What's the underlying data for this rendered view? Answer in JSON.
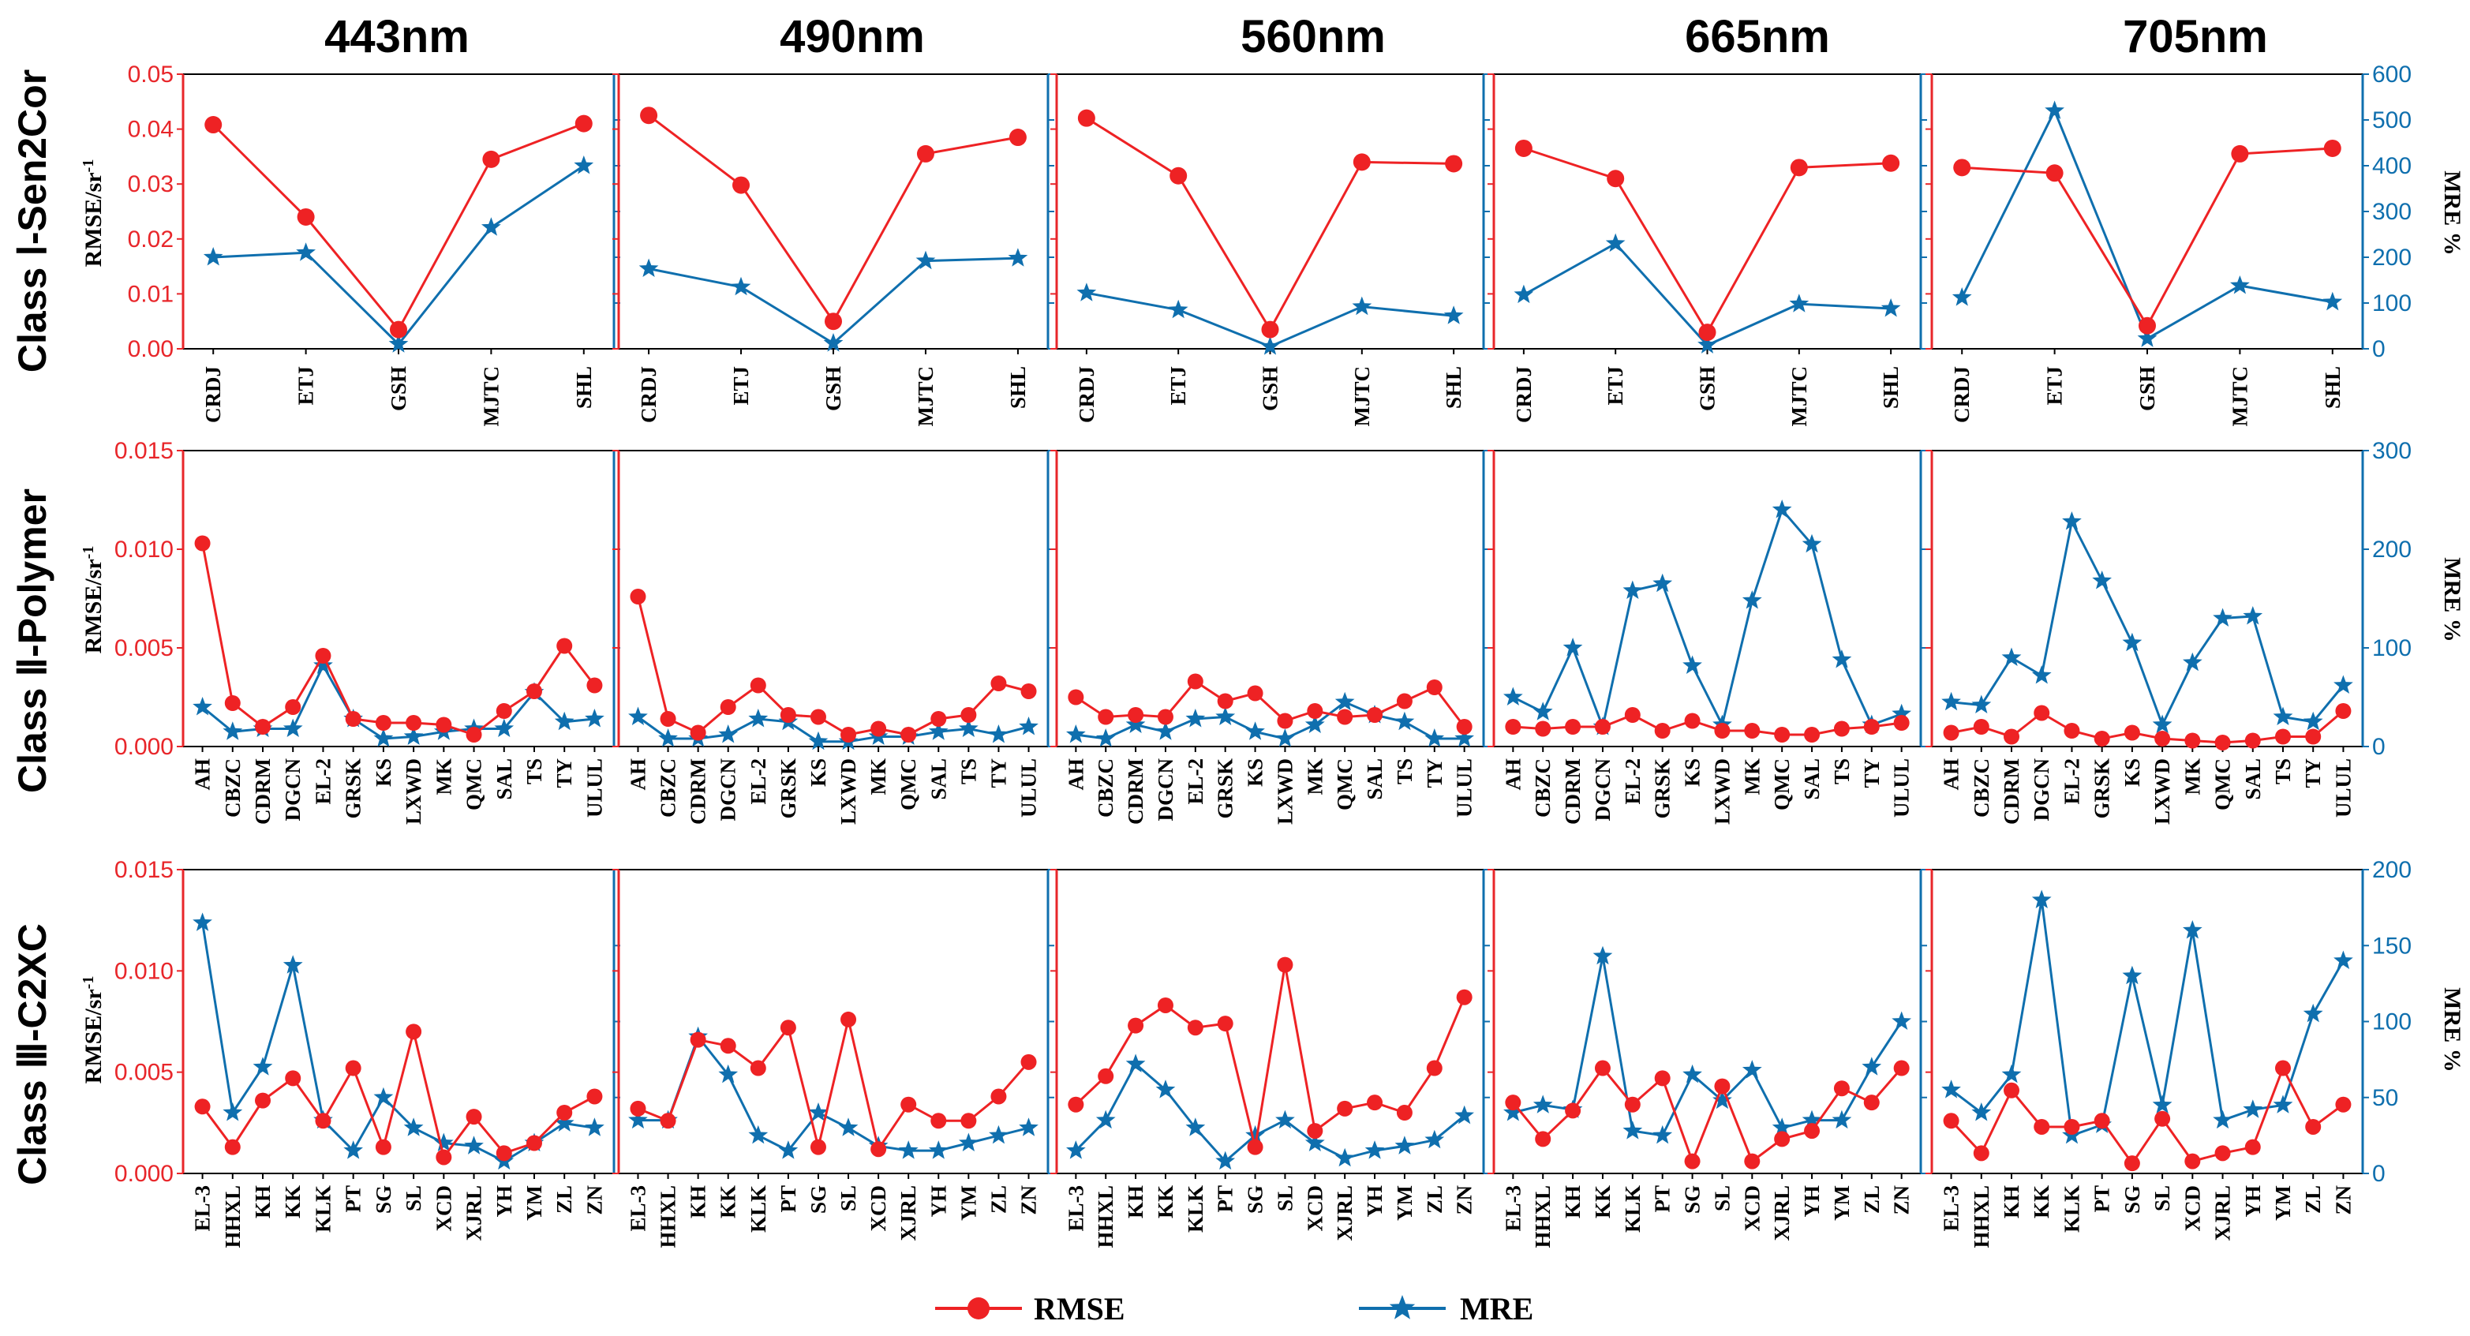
{
  "colors": {
    "rmse": "#ee2224",
    "mre": "#0f6fae",
    "axis_left": "#e8262a",
    "axis_right": "#0f6fae"
  },
  "column_titles": [
    "443nm",
    "490nm",
    "560nm",
    "665nm",
    "705nm"
  ],
  "row_labels": [
    "Class Ⅰ-Sen2Cor",
    "Class Ⅱ-Polymer",
    "Class Ⅲ-C2XC"
  ],
  "axis_labels": {
    "left": "RMSE/sr",
    "left_superscript": "-1",
    "right": "MRE %"
  },
  "legend": [
    {
      "name": "RMSE",
      "marker": "circle"
    },
    {
      "name": "MRE",
      "marker": "star"
    }
  ],
  "chart_data": {
    "type": "line",
    "series_names": [
      "RMSE",
      "MRE"
    ],
    "rows": [
      {
        "label": "Class Ⅰ-Sen2Cor",
        "categories": [
          "CRDJ",
          "ETJ",
          "GSH",
          "MJTC",
          "SHL"
        ],
        "left_ylim": [
          0,
          0.05
        ],
        "left_ticks": [
          "0.00",
          "0.01",
          "0.02",
          "0.03",
          "0.04",
          "0.05"
        ],
        "right_ylim": [
          0,
          600
        ],
        "right_ticks": [
          "0",
          "100",
          "200",
          "300",
          "400",
          "500",
          "600"
        ],
        "panels": [
          {
            "wavelength": "443nm",
            "rmse": [
              0.0408,
              0.024,
              0.0035,
              0.0345,
              0.041
            ],
            "mre": [
              200,
              210,
              10,
              265,
              400
            ]
          },
          {
            "wavelength": "490nm",
            "rmse": [
              0.0425,
              0.0298,
              0.005,
              0.0355,
              0.0385
            ],
            "mre": [
              175,
              135,
              12,
              192,
              198
            ]
          },
          {
            "wavelength": "560nm",
            "rmse": [
              0.042,
              0.0315,
              0.0035,
              0.034,
              0.0337
            ],
            "mre": [
              122,
              85,
              5,
              92,
              72
            ]
          },
          {
            "wavelength": "665nm",
            "rmse": [
              0.0365,
              0.031,
              0.003,
              0.033,
              0.0338
            ],
            "mre": [
              118,
              230,
              8,
              98,
              88
            ]
          },
          {
            "wavelength": "705nm",
            "rmse": [
              0.033,
              0.032,
              0.0042,
              0.0355,
              0.0365
            ],
            "mre": [
              112,
              520,
              22,
              138,
              102
            ]
          }
        ]
      },
      {
        "label": "Class Ⅱ-Polymer",
        "categories": [
          "AH",
          "CBZC",
          "CDRM",
          "DGCN",
          "EL-2",
          "GRSK",
          "KS",
          "LXWD",
          "MK",
          "QMC",
          "SAL",
          "TS",
          "TY",
          "ULUL"
        ],
        "left_ylim": [
          0,
          0.015
        ],
        "left_ticks": [
          "0.000",
          "0.005",
          "0.010",
          "0.015"
        ],
        "right_ylim": [
          0,
          300
        ],
        "right_ticks": [
          "0",
          "100",
          "200",
          "300"
        ],
        "panels": [
          {
            "wavelength": "443nm",
            "rmse": [
              0.0103,
              0.0022,
              0.001,
              0.002,
              0.0046,
              0.0014,
              0.0012,
              0.0012,
              0.0011,
              0.0006,
              0.0018,
              0.0028,
              0.0051,
              0.0031
            ],
            "mre": [
              40,
              15,
              18,
              18,
              82,
              28,
              8,
              10,
              15,
              18,
              18,
              55,
              25,
              28
            ]
          },
          {
            "wavelength": "490nm",
            "rmse": [
              0.0076,
              0.0014,
              0.0007,
              0.002,
              0.0031,
              0.0016,
              0.0015,
              0.0006,
              0.0009,
              0.0006,
              0.0014,
              0.0016,
              0.0032,
              0.0028
            ],
            "mre": [
              30,
              8,
              8,
              12,
              28,
              25,
              5,
              5,
              10,
              10,
              15,
              18,
              12,
              20
            ]
          },
          {
            "wavelength": "560nm",
            "rmse": [
              0.0025,
              0.0015,
              0.0016,
              0.0015,
              0.0033,
              0.0023,
              0.0027,
              0.0013,
              0.0018,
              0.0015,
              0.0016,
              0.0023,
              0.003,
              0.001
            ],
            "mre": [
              12,
              8,
              22,
              15,
              28,
              30,
              15,
              8,
              22,
              45,
              32,
              25,
              8,
              8
            ]
          },
          {
            "wavelength": "665nm",
            "rmse": [
              0.001,
              0.0009,
              0.001,
              0.001,
              0.0016,
              0.0008,
              0.0013,
              0.0008,
              0.0008,
              0.0006,
              0.0006,
              0.0009,
              0.001,
              0.0012
            ],
            "mre": [
              50,
              35,
              100,
              20,
              158,
              165,
              82,
              22,
              148,
              240,
              205,
              88,
              22,
              33
            ]
          },
          {
            "wavelength": "705nm",
            "rmse": [
              0.0007,
              0.001,
              0.0005,
              0.0017,
              0.0008,
              0.0004,
              0.0007,
              0.0004,
              0.0003,
              0.0002,
              0.0003,
              0.0005,
              0.0005,
              0.0018
            ],
            "mre": [
              45,
              42,
              90,
              72,
              228,
              168,
              105,
              22,
              85,
              130,
              132,
              30,
              25,
              62
            ]
          }
        ]
      },
      {
        "label": "Class Ⅲ-C2XC",
        "categories": [
          "EL-3",
          "HHXL",
          "KH",
          "KK",
          "KLK",
          "PT",
          "SG",
          "SL",
          "XCD",
          "XJRL",
          "YH",
          "YM",
          "ZL",
          "ZN"
        ],
        "left_ylim": [
          0,
          0.015
        ],
        "left_ticks": [
          "0.000",
          "0.005",
          "0.010",
          "0.015"
        ],
        "right_ylim": [
          0,
          200
        ],
        "right_ticks": [
          "0",
          "50",
          "100",
          "150",
          "200"
        ],
        "panels": [
          {
            "wavelength": "443nm",
            "rmse": [
              0.0033,
              0.0013,
              0.0036,
              0.0047,
              0.0026,
              0.0052,
              0.0013,
              0.007,
              0.0008,
              0.0028,
              0.001,
              0.0015,
              0.003,
              0.0038
            ],
            "mre": [
              165,
              40,
              70,
              137,
              35,
              15,
              50,
              30,
              20,
              18,
              8,
              20,
              33,
              30
            ]
          },
          {
            "wavelength": "490nm",
            "rmse": [
              0.0032,
              0.0026,
              0.0066,
              0.0063,
              0.0052,
              0.0072,
              0.0013,
              0.0076,
              0.0012,
              0.0034,
              0.0026,
              0.0026,
              0.0038,
              0.0055
            ],
            "mre": [
              35,
              35,
              90,
              65,
              25,
              15,
              40,
              30,
              18,
              15,
              15,
              20,
              25,
              30
            ]
          },
          {
            "wavelength": "560nm",
            "rmse": [
              0.0034,
              0.0048,
              0.0073,
              0.0083,
              0.0072,
              0.0074,
              0.0013,
              0.0103,
              0.0021,
              0.0032,
              0.0035,
              0.003,
              0.0052,
              0.0087
            ],
            "mre": [
              15,
              35,
              72,
              55,
              30,
              8,
              25,
              35,
              20,
              10,
              15,
              18,
              22,
              38
            ]
          },
          {
            "wavelength": "665nm",
            "rmse": [
              0.0035,
              0.0017,
              0.0031,
              0.0052,
              0.0034,
              0.0047,
              0.0006,
              0.0043,
              0.0006,
              0.0017,
              0.0021,
              0.0042,
              0.0035,
              0.0052
            ],
            "mre": [
              40,
              45,
              42,
              143,
              28,
              25,
              65,
              48,
              68,
              30,
              35,
              35,
              70,
              100
            ]
          },
          {
            "wavelength": "705nm",
            "rmse": [
              0.0026,
              0.001,
              0.0041,
              0.0023,
              0.0023,
              0.0026,
              0.0005,
              0.0027,
              0.0006,
              0.001,
              0.0013,
              0.0052,
              0.0023,
              0.0034
            ],
            "mre": [
              55,
              40,
              65,
              180,
              25,
              32,
              130,
              45,
              160,
              35,
              42,
              45,
              105,
              140
            ]
          }
        ]
      }
    ]
  }
}
